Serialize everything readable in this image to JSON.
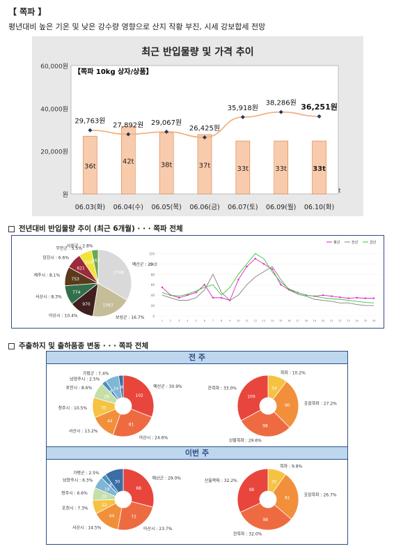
{
  "header": {
    "title": "【 쪽파 】",
    "subtitle": "평년대비 높은 기온 및 낮은 강수량 영향으로 산지 작황 부진, 시세 강보합세 전망"
  },
  "chart_data": [
    {
      "type": "bar+line",
      "title": "최근 반입물량 및 가격 추이",
      "inset_label": "【쪽파 10kg 상자/상품】",
      "categories": [
        "06.03(화)",
        "06.04(수)",
        "06.05(목)",
        "06.06(금)",
        "06.07(토)",
        "06.09(월)",
        "06.10(화)"
      ],
      "bar_labels": [
        "36t",
        "42t",
        "38t",
        "37t",
        "33t",
        "33t",
        "33t"
      ],
      "bar_values": [
        36,
        42,
        38,
        37,
        33,
        33,
        33
      ],
      "prices": [
        29763,
        27892,
        29067,
        26425,
        35918,
        38286,
        36251
      ],
      "price_labels": [
        "29,763원",
        "27,892원",
        "29,067원",
        "26,425원",
        "35,918원",
        "38,286원",
        "36,251원"
      ],
      "yticks": [
        "60,000원",
        "40,000원",
        "20,000원",
        "원"
      ],
      "ylim": [
        0,
        60000
      ],
      "unit": "t",
      "colors": {
        "bar": "#f8cbad",
        "bar_edge": "#e07b39",
        "line": "#f4b183",
        "marker": "#1f3864"
      }
    },
    {
      "type": "pie",
      "title": "전년대비 반입물량 추이 (최근 6개월) · · · 쪽파 전체",
      "slices": [
        {
          "label": "예산군 : 29.3%",
          "value": 2748,
          "color": "#d9d9d9"
        },
        {
          "label": "보성군 : 16.7%",
          "value": 1567,
          "color": "#c4bd97"
        },
        {
          "label": "아산시 : 10.4%",
          "value": 970,
          "color": "#3f1f1f"
        },
        {
          "label": "서산시 : 8.3%",
          "value": 774,
          "color": "#31704a"
        },
        {
          "label": "제주시 : 8.1%",
          "value": 753,
          "color": "#5a3a1a"
        },
        {
          "label": "당진시 : 6.6%",
          "value": 621,
          "color": "#9c2a3c"
        },
        {
          "label": "무안군 : 5.5%",
          "value": 515,
          "color": "#f2e33c"
        },
        {
          "label": "서천군 : 2.8%",
          "value": 263,
          "color": "#6aa84f"
        }
      ]
    },
    {
      "type": "line",
      "legend": [
        "평년",
        "전년",
        "금년"
      ],
      "x": [
        "1",
        "2",
        "3",
        "4",
        "5",
        "6",
        "7",
        "8",
        "9",
        "10",
        "11",
        "12",
        "13",
        "14",
        "15",
        "16",
        "17",
        "18",
        "19",
        "20",
        "21",
        "22",
        "23",
        "24",
        "25",
        "26"
      ],
      "series": [
        {
          "name": "평년",
          "color": "#e020c0",
          "values": [
            55,
            40,
            35,
            40,
            45,
            60,
            35,
            35,
            30,
            70,
            95,
            110,
            100,
            90,
            60,
            50,
            45,
            40,
            38,
            40,
            38,
            36,
            34,
            35,
            34,
            34
          ]
        },
        {
          "name": "전년",
          "color": "#808080",
          "values": [
            40,
            35,
            30,
            30,
            35,
            50,
            80,
            45,
            30,
            40,
            60,
            75,
            85,
            95,
            70,
            50,
            42,
            38,
            32,
            30,
            28,
            25,
            25,
            22,
            20,
            20
          ]
        },
        {
          "name": "금년",
          "color": "#33c633",
          "values": [
            45,
            40,
            38,
            42,
            48,
            55,
            60,
            40,
            55,
            80,
            100,
            120,
            110,
            85,
            65,
            52,
            45,
            40,
            38,
            35,
            33,
            32,
            30,
            28,
            26,
            25
          ]
        }
      ],
      "ylim": [
        0,
        130
      ],
      "yticks": [
        "0",
        "20",
        "40",
        "60",
        "80",
        "100",
        "120"
      ]
    },
    {
      "type": "donut",
      "title": "주출하지 및 출하품종 변동 · · · 쪽파 전체",
      "band": "전 주",
      "slices": [
        {
          "label": "예산군 : 30.9%",
          "value": 102,
          "color": "#e8453c"
        },
        {
          "label": "아산시 : 24.6%",
          "value": 81,
          "color": "#ee6b42"
        },
        {
          "label": "서산시 : 13.2%",
          "value": 44,
          "color": "#f28f3b"
        },
        {
          "label": "청주시 : 10.5%",
          "value": 35,
          "color": "#f5c242"
        },
        {
          "label": "포천시 : 8.6%",
          "value": 28,
          "color": "#c6dfa8"
        },
        {
          "label": "남양주시 : 2.5%",
          "value": 8,
          "color": "#4a90c0"
        },
        {
          "label": "가평군 : 7.4%",
          "value": 24,
          "color": "#7fb5d5"
        },
        {
          "label": "",
          "value": 8,
          "color": "#3a6ea5"
        }
      ]
    },
    {
      "type": "donut",
      "band": "전 주",
      "slices": [
        {
          "label": "쪽파 : 10.2%",
          "value": 34,
          "color": "#f5c242"
        },
        {
          "label": "포장쪽파 : 27.2%",
          "value": 90,
          "color": "#f28f3b"
        },
        {
          "label": "산울쪽파 : 29.6%",
          "value": 98,
          "color": "#ee6b42"
        },
        {
          "label": "깐쪽파 : 33.0%",
          "value": 109,
          "color": "#e8453c"
        }
      ]
    },
    {
      "type": "donut",
      "band": "이번 주",
      "slices": [
        {
          "label": "예산군 : 29.0%",
          "value": 88,
          "color": "#e8453c"
        },
        {
          "label": "아산시 : 23.7%",
          "value": 72,
          "color": "#ee6b42"
        },
        {
          "label": "서산시 : 14.5%",
          "value": 44,
          "color": "#f28f3b"
        },
        {
          "label": "포천시 : 7.3%",
          "value": 22,
          "color": "#f5c242"
        },
        {
          "label": "청주시 : 6.6%",
          "value": 20,
          "color": "#c6dfa8"
        },
        {
          "label": "남양주시 : 6.3%",
          "value": 19,
          "color": "#7fb5d5"
        },
        {
          "label": "가평군 : 2.5%",
          "value": 8,
          "color": "#4a90c0"
        },
        {
          "label": "",
          "value": 30,
          "color": "#3a6ea5"
        }
      ]
    },
    {
      "type": "donut",
      "band": "이번 주",
      "slices": [
        {
          "label": "쪽파 : 9.8%",
          "value": 30,
          "color": "#f5c242"
        },
        {
          "label": "포장쪽파 : 26.7%",
          "value": 81,
          "color": "#f28f3b"
        },
        {
          "label": "깐쪽파 : 32.0%",
          "value": 98,
          "color": "#ee6b42"
        },
        {
          "label": "산울쪽파 : 32.2%",
          "value": 98,
          "color": "#e8453c"
        }
      ]
    }
  ],
  "sections": {
    "s2": "전년대비 반입물량 추이 (최근 6개월) · · · 쪽파 전체",
    "s3": "주출하지 및 출하품종 변동 · · · 쪽파 전체",
    "band1": "전 주",
    "band2": "이번 주"
  }
}
